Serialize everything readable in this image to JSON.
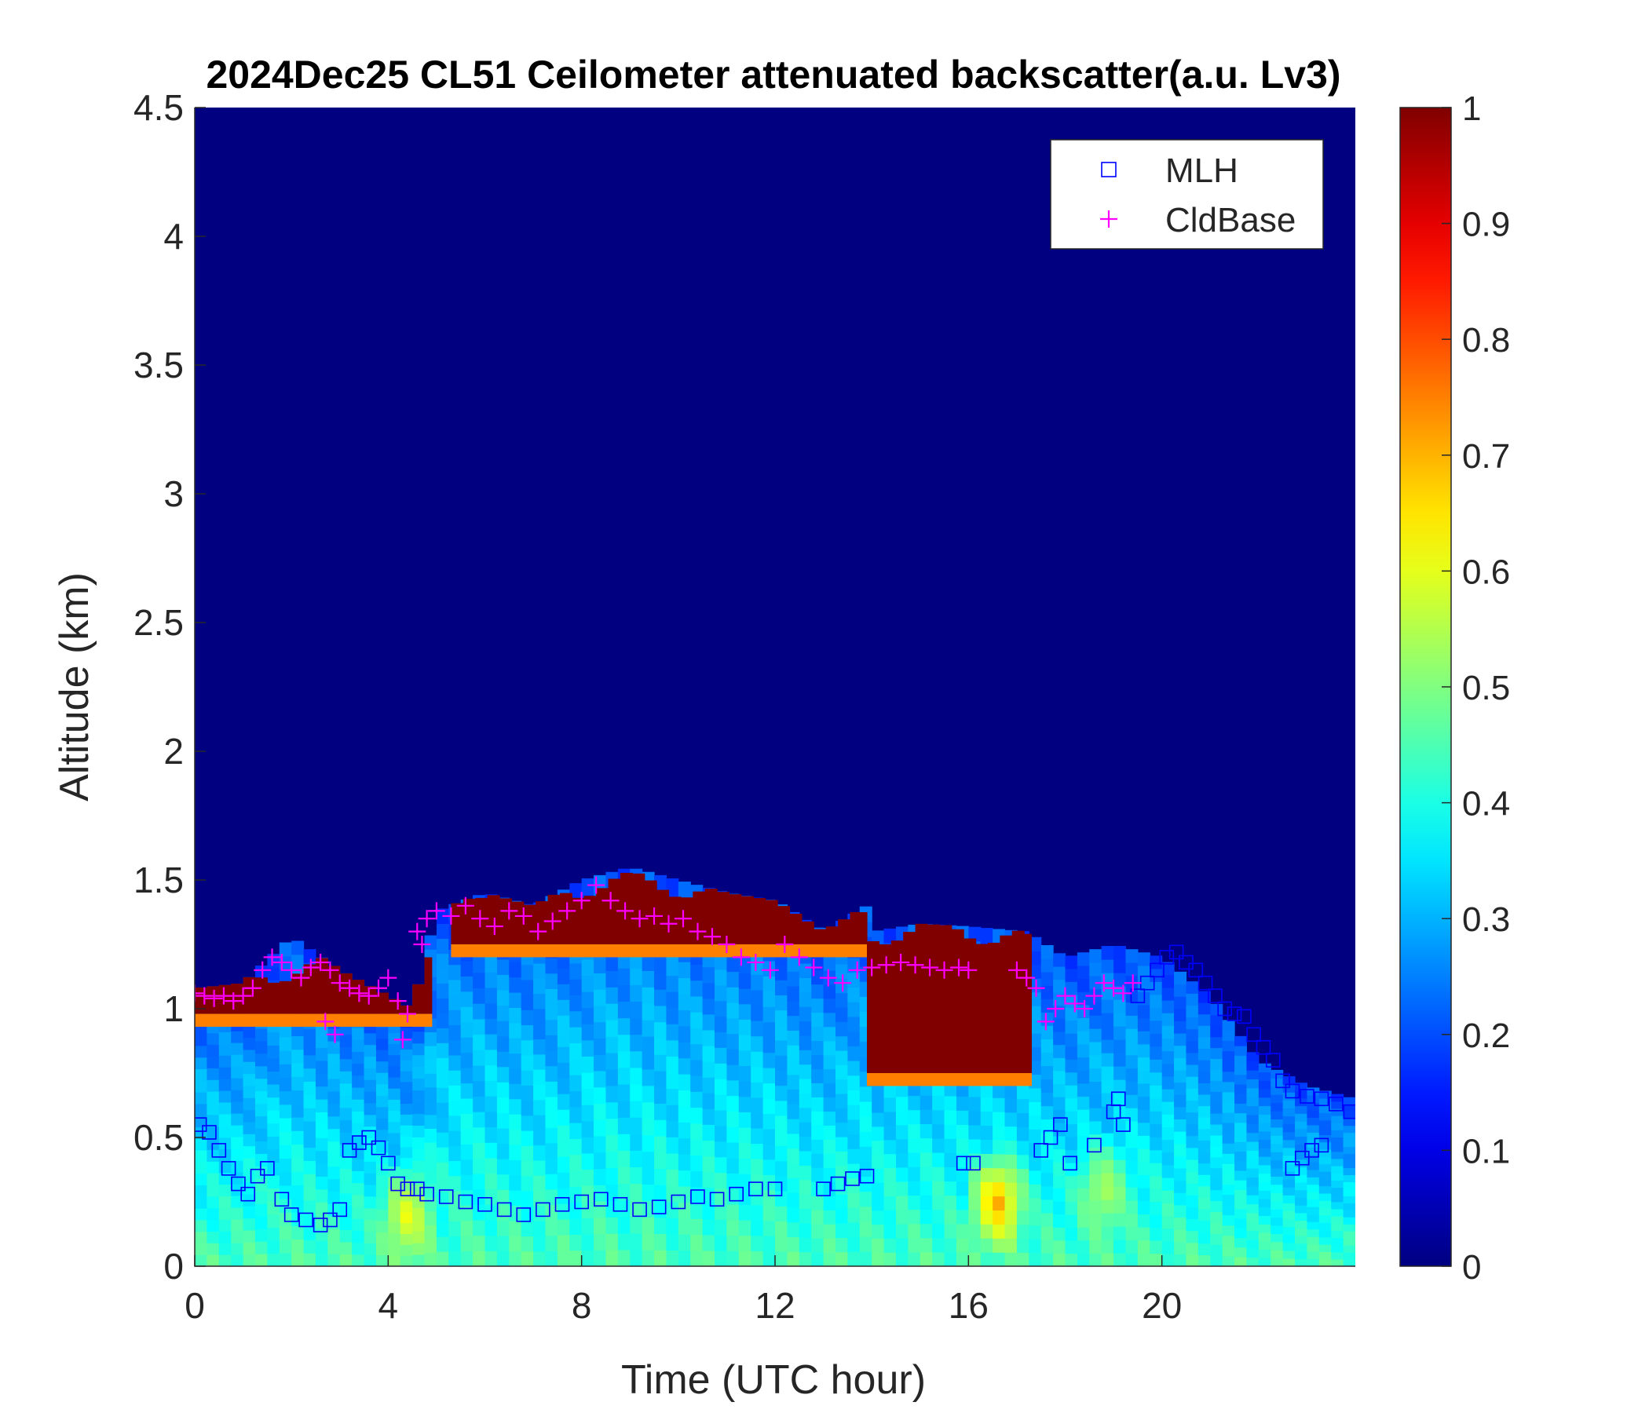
{
  "chart_data": {
    "type": "heatmap",
    "title": "2024Dec25 CL51 Ceilometer attenuated backscatter(a.u. Lv3)",
    "xlabel": "Time (UTC hour)",
    "ylabel": "Altitude (km)",
    "xlim": [
      0,
      24
    ],
    "ylim": [
      0,
      4.5
    ],
    "xticks": [
      0,
      4,
      8,
      12,
      16,
      20
    ],
    "xtick_labels": [
      "0",
      "4",
      "8",
      "12",
      "16",
      "20"
    ],
    "yticks": [
      0,
      0.5,
      1,
      1.5,
      2,
      2.5,
      3,
      3.5,
      4,
      4.5
    ],
    "ytick_labels": [
      "0",
      "0.5",
      "1",
      "1.5",
      "2",
      "2.5",
      "3",
      "3.5",
      "4",
      "4.5"
    ],
    "colorbar": {
      "colormap": "jet",
      "range": [
        0,
        1
      ],
      "ticks": [
        0,
        0.1,
        0.2,
        0.3,
        0.4,
        0.5,
        0.6,
        0.7,
        0.8,
        0.9,
        1
      ],
      "tick_labels": [
        "0",
        "0.1",
        "0.2",
        "0.3",
        "0.4",
        "0.5",
        "0.6",
        "0.7",
        "0.8",
        "0.9",
        "1"
      ]
    },
    "background_value": 0.0,
    "legend": {
      "placement": "top-right",
      "entries": [
        {
          "label": "MLH",
          "marker": "square",
          "color": "#0000ff"
        },
        {
          "label": "CldBase",
          "marker": "plus",
          "color": "#ff00ff"
        }
      ]
    },
    "field": {
      "layer_top_km": [
        [
          0,
          1.08
        ],
        [
          1,
          1.1
        ],
        [
          2,
          1.28
        ],
        [
          3,
          1.15
        ],
        [
          4,
          1.05
        ],
        [
          4.5,
          1.0
        ],
        [
          5,
          1.38
        ],
        [
          6,
          1.45
        ],
        [
          7,
          1.4
        ],
        [
          8,
          1.5
        ],
        [
          9,
          1.55
        ],
        [
          10,
          1.5
        ],
        [
          11,
          1.45
        ],
        [
          12,
          1.42
        ],
        [
          13,
          1.3
        ],
        [
          13.9,
          1.4
        ],
        [
          14,
          1.3
        ],
        [
          15,
          1.33
        ],
        [
          16,
          1.32
        ],
        [
          17.2,
          1.3
        ],
        [
          18,
          1.2
        ],
        [
          19,
          1.25
        ],
        [
          20,
          1.2
        ],
        [
          21,
          1.05
        ],
        [
          22,
          0.8
        ],
        [
          23,
          0.7
        ],
        [
          24,
          0.65
        ]
      ],
      "cloud_segments_hours": [
        [
          0,
          4.9
        ],
        [
          5.3,
          13.9
        ],
        [
          13.9,
          17.3
        ]
      ],
      "cloud_band": [
        {
          "x": [
            0,
            4.9
          ],
          "top_km": 1.15,
          "bottom_km": 0.98
        },
        {
          "x": [
            5.3,
            13.9
          ],
          "top_km": 1.48,
          "bottom_km": 1.25
        },
        {
          "x": [
            13.9,
            17.3
          ],
          "top_km": 1.3,
          "bottom_km": 0.75
        }
      ],
      "surface_value": 0.45,
      "mid_layer_value": 0.2,
      "hotspots": [
        {
          "x": 16.6,
          "y_km": 0.25,
          "value": 0.72
        },
        {
          "x": 4.4,
          "y_km": 0.2,
          "value": 0.62
        },
        {
          "x": 18.8,
          "y_km": 0.3,
          "value": 0.55
        }
      ]
    },
    "series": [
      {
        "name": "MLH",
        "marker": "square",
        "x": [
          0.1,
          0.3,
          0.5,
          0.7,
          0.9,
          1.1,
          1.3,
          1.5,
          1.8,
          2.0,
          2.3,
          2.6,
          2.8,
          3.0,
          3.2,
          3.4,
          3.6,
          3.8,
          4.0,
          4.2,
          4.4,
          4.6,
          4.8,
          5.2,
          5.6,
          6.0,
          6.4,
          6.8,
          7.2,
          7.6,
          8.0,
          8.4,
          8.8,
          9.2,
          9.6,
          10.0,
          10.4,
          10.8,
          11.2,
          11.6,
          12.0,
          13.0,
          13.3,
          13.6,
          13.9,
          15.9,
          16.1,
          17.5,
          17.7,
          17.9,
          18.1,
          18.6,
          19.0,
          19.1,
          19.2,
          19.5,
          19.7,
          19.9,
          20.1,
          20.3,
          20.5,
          20.7,
          20.9,
          21.1,
          21.3,
          21.5,
          21.7,
          21.9,
          22.1,
          22.3,
          22.5,
          22.7,
          23.0,
          23.3,
          23.6,
          23.9,
          22.7,
          22.9,
          23.1,
          23.3
        ],
        "y": [
          0.55,
          0.52,
          0.45,
          0.38,
          0.32,
          0.28,
          0.35,
          0.38,
          0.26,
          0.2,
          0.18,
          0.16,
          0.18,
          0.22,
          0.45,
          0.48,
          0.5,
          0.46,
          0.4,
          0.32,
          0.3,
          0.3,
          0.28,
          0.27,
          0.25,
          0.24,
          0.22,
          0.2,
          0.22,
          0.24,
          0.25,
          0.26,
          0.24,
          0.22,
          0.23,
          0.25,
          0.27,
          0.26,
          0.28,
          0.3,
          0.3,
          0.3,
          0.32,
          0.34,
          0.35,
          0.4,
          0.4,
          0.45,
          0.5,
          0.55,
          0.4,
          0.47,
          0.6,
          0.65,
          0.55,
          1.05,
          1.1,
          1.15,
          1.2,
          1.22,
          1.18,
          1.15,
          1.1,
          1.05,
          1.0,
          0.98,
          0.97,
          0.9,
          0.85,
          0.8,
          0.72,
          0.68,
          0.66,
          0.65,
          0.63,
          0.6,
          0.38,
          0.42,
          0.45,
          0.47
        ]
      },
      {
        "name": "CldBase",
        "marker": "plus",
        "x": [
          0,
          0.2,
          0.4,
          0.6,
          0.8,
          1.0,
          1.2,
          1.4,
          1.6,
          1.8,
          2.0,
          2.2,
          2.4,
          2.6,
          2.8,
          3.0,
          3.2,
          3.4,
          3.6,
          3.8,
          4.0,
          4.2,
          4.4,
          4.6,
          4.8,
          5.0,
          5.3,
          5.6,
          5.9,
          6.2,
          6.5,
          6.8,
          7.1,
          7.4,
          7.7,
          8.0,
          8.3,
          8.6,
          8.9,
          9.2,
          9.5,
          9.8,
          10.1,
          10.4,
          10.7,
          11.0,
          11.3,
          11.6,
          11.9,
          12.2,
          12.5,
          12.8,
          13.1,
          13.4,
          13.7,
          14.0,
          14.3,
          14.6,
          14.9,
          15.2,
          15.5,
          15.8,
          16.0,
          17.0,
          17.2,
          17.4,
          17.6,
          17.8,
          18.0,
          18.2,
          18.4,
          18.6,
          18.8,
          19.0,
          19.2,
          19.4,
          2.9,
          2.7,
          4.3,
          4.7
        ],
        "y": [
          1.06,
          1.05,
          1.04,
          1.05,
          1.03,
          1.05,
          1.08,
          1.15,
          1.2,
          1.18,
          1.15,
          1.12,
          1.16,
          1.18,
          1.15,
          1.1,
          1.08,
          1.06,
          1.05,
          1.08,
          1.12,
          1.03,
          0.98,
          1.3,
          1.35,
          1.38,
          1.36,
          1.4,
          1.35,
          1.32,
          1.38,
          1.36,
          1.3,
          1.34,
          1.38,
          1.42,
          1.48,
          1.42,
          1.38,
          1.35,
          1.36,
          1.33,
          1.35,
          1.3,
          1.28,
          1.25,
          1.2,
          1.18,
          1.15,
          1.25,
          1.2,
          1.16,
          1.12,
          1.1,
          1.15,
          1.16,
          1.17,
          1.18,
          1.17,
          1.16,
          1.15,
          1.16,
          1.15,
          1.15,
          1.12,
          1.08,
          0.95,
          1.0,
          1.05,
          1.02,
          1.0,
          1.05,
          1.1,
          1.08,
          1.06,
          1.1,
          0.9,
          0.95,
          0.88,
          1.25
        ]
      }
    ]
  }
}
